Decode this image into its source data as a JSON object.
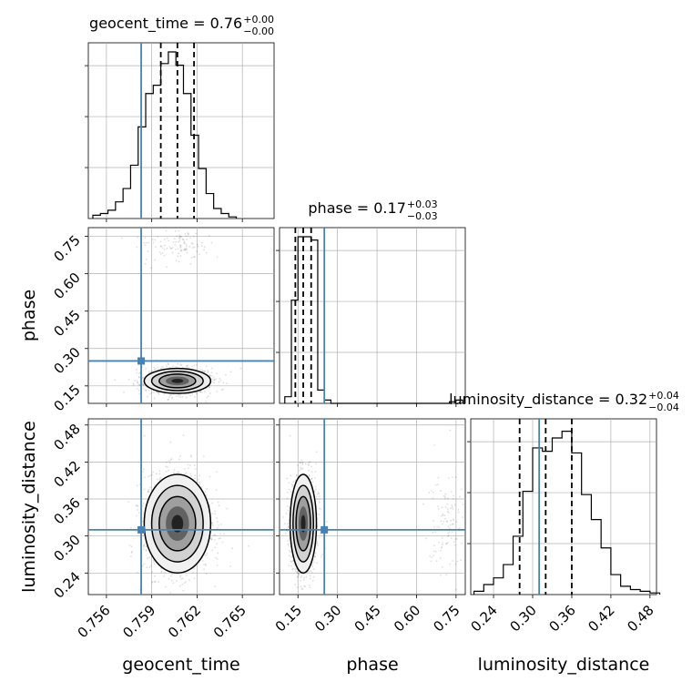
{
  "chart_data": {
    "type": "corner",
    "parameters": [
      "geocent_time",
      "phase",
      "luminosity_distance"
    ],
    "truths": {
      "geocent_time": 0.7583,
      "phase": 0.25,
      "luminosity_distance": 0.31
    },
    "truth_color": "#4682b4",
    "titles": [
      {
        "param": "geocent_time",
        "text": "geocent_time = 0.76",
        "sup": "+0.00",
        "sub": "−0.00"
      },
      {
        "param": "phase",
        "text": "phase = 0.17",
        "sup": "+0.03",
        "sub": "−0.03"
      },
      {
        "param": "luminosity_distance",
        "text": "luminosity_distance = 0.32",
        "sup": "+0.04",
        "sub": "−0.04"
      }
    ],
    "axis_labels": {
      "geocent_time": "geocent_time",
      "phase": "phase",
      "luminosity_distance": "luminosity_distance"
    },
    "ranges": {
      "geocent_time": [
        0.7548,
        0.7671
      ],
      "phase": [
        0.08,
        0.785
      ],
      "luminosity_distance": [
        0.205,
        0.49
      ]
    },
    "ticks": {
      "geocent_time": [
        "0.756",
        "0.759",
        "0.762",
        "0.765"
      ],
      "phase": [
        "0.15",
        "0.30",
        "0.45",
        "0.60",
        "0.75"
      ],
      "luminosity_distance": [
        "0.24",
        "0.30",
        "0.36",
        "0.42",
        "0.48"
      ]
    },
    "quantiles": {
      "geocent_time": [
        0.7596,
        0.7607,
        0.7618
      ],
      "phase": [
        0.14,
        0.17,
        0.2
      ],
      "luminosity_distance": [
        0.28,
        0.32,
        0.36
      ]
    },
    "histograms": {
      "geocent_time": {
        "edges_start": 0.7551,
        "bin_width": 0.0005,
        "counts": [
          0.02,
          0.03,
          0.05,
          0.1,
          0.18,
          0.32,
          0.55,
          0.75,
          0.8,
          0.93,
          1.0,
          0.92,
          0.75,
          0.5,
          0.3,
          0.15,
          0.06,
          0.03,
          0.01
        ]
      },
      "phase": {
        "edges_start": 0.1,
        "bin_width": 0.025,
        "counts": [
          0.04,
          0.62,
          1.0,
          1.0,
          0.98,
          0.08,
          0.02,
          0.0,
          0.0,
          0.0,
          0.0,
          0.0,
          0.0,
          0.0,
          0.0,
          0.0,
          0.0,
          0.0,
          0.0,
          0.0,
          0.0,
          0.0,
          0.0,
          0.0,
          0.0,
          0.01,
          0.02
        ]
      },
      "luminosity_distance": {
        "edges_start": 0.21,
        "bin_width": 0.015,
        "counts": [
          0.02,
          0.06,
          0.1,
          0.18,
          0.35,
          0.62,
          0.88,
          0.86,
          0.94,
          0.98,
          0.85,
          0.6,
          0.45,
          0.28,
          0.12,
          0.05,
          0.03,
          0.02,
          0.01
        ]
      }
    },
    "posterior_summary": {
      "geocent_time": {
        "mean": 0.7607,
        "std": 0.0011
      },
      "phase": {
        "mean": 0.17,
        "std": 0.025,
        "secondary_mode": 0.71
      },
      "luminosity_distance": {
        "mean": 0.32,
        "std": 0.04
      }
    }
  }
}
